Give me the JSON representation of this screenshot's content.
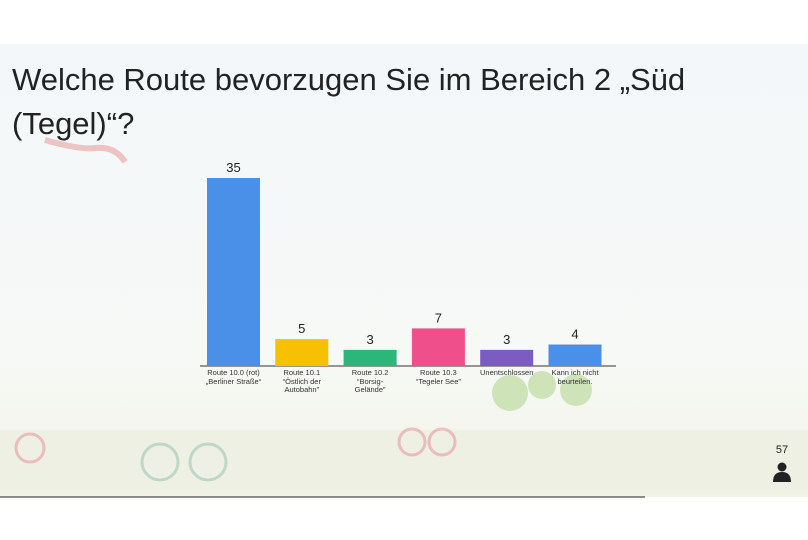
{
  "chart_data": {
    "type": "bar",
    "title": "Welche Route bevorzugen Sie im Bereich 2 „Süd (Tegel)“?",
    "categories": [
      "Route 10.0 (rot)\n„Berliner Straße“",
      "Route 10.1\n“Östlich der\nAutobahn”",
      "Route 10.2\n“Borsig-\nGelände”",
      "Route 10.3\n“Tegeler See”",
      "Unentschlossen",
      "Kann ich nicht\nbeurteilen."
    ],
    "values": [
      35,
      5,
      3,
      7,
      3,
      4
    ],
    "colors": [
      "#4a8fe8",
      "#f7c000",
      "#2bb77a",
      "#ef4f8b",
      "#7a5cc2",
      "#4a8fe8"
    ]
  },
  "participant_count": 57
}
